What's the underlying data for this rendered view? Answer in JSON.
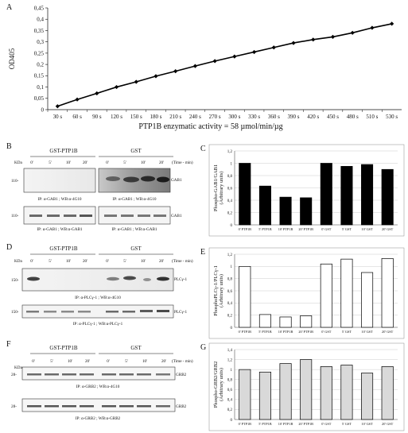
{
  "panels": {
    "A": {
      "letter": "A",
      "chart_data": {
        "type": "line",
        "ylabel": "OD405",
        "xlabel": "PTP1B enzymatic activity = 58 µmol/min/µg",
        "ylim": [
          0,
          0.45
        ],
        "yticks": [
          "0",
          "0,05",
          "0,1",
          "0,15",
          "0,2",
          "0,25",
          "0,3",
          "0,35",
          "0,4",
          "0,45"
        ],
        "categories": [
          "30 s",
          "60 s",
          "90 s",
          "120 s",
          "150 s",
          "180 s",
          "210 s",
          "240 s",
          "270 s",
          "300 s",
          "330 s",
          "360 s",
          "390 s",
          "420 s",
          "450 s",
          "480 s",
          "510 s",
          "530 s"
        ],
        "values": [
          0.015,
          0.045,
          0.072,
          0.1,
          0.123,
          0.148,
          0.17,
          0.193,
          0.215,
          0.235,
          0.255,
          0.275,
          0.295,
          0.31,
          0.322,
          0.34,
          0.362,
          0.38
        ]
      }
    },
    "B": {
      "letter": "B",
      "group_left": "GST-PTP1B",
      "group_right": "GST",
      "time_label": "(Time - min)",
      "kda": "KDa",
      "lanes": [
        "0'",
        "5'",
        "10'",
        "20'",
        "0'",
        "5'",
        "10'",
        "20'"
      ],
      "blot1": {
        "marker": "110-",
        "band": "GAB1",
        "ip_left": "IP: α-GAB1 ;  WB:α-4G10",
        "ip_right": "IP: α-GAB1 ;  WB:α-4G10"
      },
      "blot2": {
        "marker": "110-",
        "band": "GAB1",
        "ip_left": "IP: α-GAB1 ;  WB:α-GAB1",
        "ip_right": "IP: α-GAB1 ;  WB:α-GAB1"
      }
    },
    "C": {
      "letter": "C",
      "chart_data": {
        "type": "bar",
        "ylabel": "Phospho-GAB1/GAB1",
        "ylabel2": "(Arbitrary units)",
        "ylim": [
          0,
          1.2
        ],
        "yticks": [
          "0",
          "0,2",
          "0,4",
          "0,6",
          "0,8",
          "1",
          "1,2"
        ],
        "categories": [
          "0' PTP1B",
          "5' PTP1B",
          "10' PTP1B",
          "20' PTP1B",
          "0' GST",
          "5' GST",
          "10' GST",
          "20' GST"
        ],
        "values": [
          1.0,
          0.63,
          0.45,
          0.44,
          1.0,
          0.95,
          0.98,
          0.9
        ],
        "color": "#000000"
      }
    },
    "D": {
      "letter": "D",
      "group_left": "GST-PTP1B",
      "group_right": "GST",
      "time_label": "(Time - min)",
      "kda": "KDa",
      "lanes": [
        "0'",
        "5'",
        "10'",
        "20'",
        "0'",
        "5'",
        "10'",
        "20'"
      ],
      "blot1": {
        "marker": "150-",
        "band": "PLCγ-1",
        "ip": "IP: α-PLCγ-1 ;  WB:α-4G10"
      },
      "blot2": {
        "marker": "150-",
        "band": "PLCγ-1",
        "ip": "IP: α-PLCγ-1 ;  WB:α-PLCγ-1"
      }
    },
    "E": {
      "letter": "E",
      "chart_data": {
        "type": "bar",
        "ylabel": "PhosphoPLCγ-1/PLCγ-1",
        "ylabel2": "(Arbitrary units)",
        "ylim": [
          0,
          1.2
        ],
        "yticks": [
          "0",
          "0,2",
          "0,4",
          "0,6",
          "0,8",
          "1",
          "1,2"
        ],
        "categories": [
          "0' PTP1B",
          "5' PTP1B",
          "10' PTP1B",
          "20' PTP1B",
          "0' GST",
          "5' GST",
          "10' GST",
          "20' GST"
        ],
        "values": [
          1.0,
          0.21,
          0.17,
          0.19,
          1.04,
          1.12,
          0.9,
          1.13
        ],
        "color": "#ffffff"
      }
    },
    "F": {
      "letter": "F",
      "group_left": "GST-PTP1B",
      "group_right": "GST",
      "time_label": "(Time - min)",
      "kda": "KDa",
      "lanes": [
        "0'",
        "5'",
        "10'",
        "20'",
        "0'",
        "5'",
        "10'",
        "20'"
      ],
      "blot1": {
        "marker": "28-",
        "band": "GRB2",
        "ip": "IP: α-GRB2 ;  WB:α-4G10"
      },
      "blot2": {
        "marker": "28-",
        "band": "GRB2",
        "ip": "IP: α-GRB2 ;  WB:α-GRB2"
      }
    },
    "G": {
      "letter": "G",
      "chart_data": {
        "type": "bar",
        "ylabel": "Phospho-GRB2/GRB2",
        "ylabel2": "(Arbitrary units)",
        "ylim": [
          0,
          1.4
        ],
        "yticks": [
          "0",
          "0,2",
          "0,4",
          "0,6",
          "0,8",
          "1",
          "1,2",
          "1,4"
        ],
        "categories": [
          "0' PTP1B",
          "5' PTP1B",
          "10' PTP1B",
          "20' PTP1B",
          "0' GST",
          "5' GST",
          "10' GST",
          "20' GST"
        ],
        "values": [
          1.0,
          0.95,
          1.12,
          1.2,
          1.06,
          1.09,
          0.93,
          1.06
        ],
        "color": "#d9d9d9"
      }
    }
  }
}
